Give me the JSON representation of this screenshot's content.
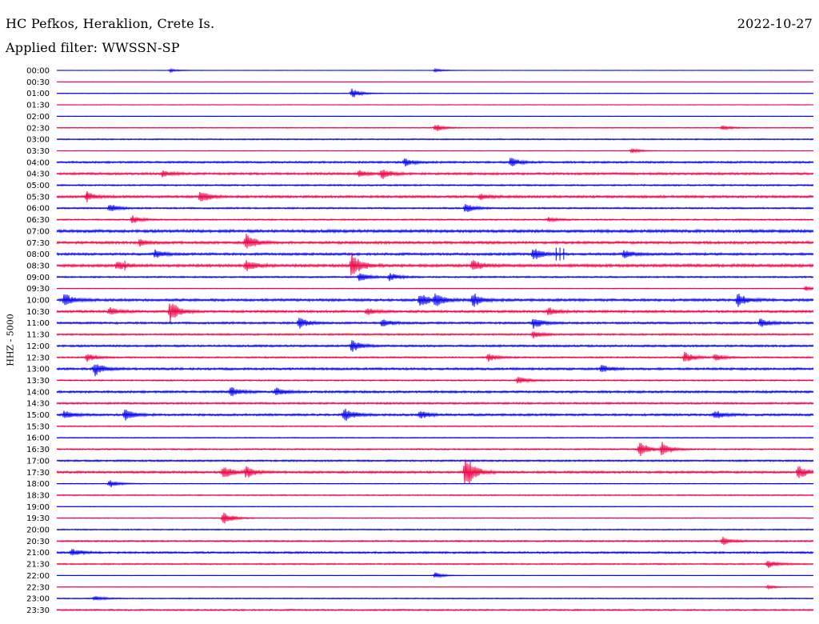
{
  "header": {
    "station": "HC Pefkos, Heraklion, Crete Is.",
    "date": "2022-10-27",
    "filter": "Applied filter: WWSSN-SP",
    "channel": "HHZ - 5000"
  },
  "colors": {
    "odd": "#0000ee",
    "even": "#ee0044"
  },
  "chart_data": {
    "type": "line",
    "title": "HC Pefkos, Heraklion, Crete Is.",
    "subtitle": "Applied filter: WWSSN-SP",
    "ylabel": "HHZ - 5000",
    "tick_labels": [
      "00:00",
      "00:30",
      "01:00",
      "01:30",
      "02:00",
      "02:30",
      "03:00",
      "03:30",
      "04:00",
      "04:30",
      "05:00",
      "05:30",
      "06:00",
      "06:30",
      "07:00",
      "07:30",
      "08:00",
      "08:30",
      "09:00",
      "09:30",
      "10:00",
      "10:30",
      "11:00",
      "11:30",
      "12:00",
      "12:30",
      "13:00",
      "13:30",
      "14:00",
      "14:30",
      "15:00",
      "15:30",
      "16:00",
      "16:30",
      "17:00",
      "17:30",
      "18:00",
      "18:30",
      "19:00",
      "19:30",
      "20:00",
      "20:30",
      "21:00",
      "21:30",
      "22:00",
      "22:30",
      "23:00",
      "23:30"
    ],
    "noise_level": [
      0.3,
      0.2,
      0.4,
      0.4,
      0.3,
      0.5,
      0.8,
      0.4,
      1.2,
      1.4,
      1.0,
      1.5,
      1.0,
      0.9,
      1.8,
      1.6,
      1.5,
      1.8,
      1.0,
      0.5,
      1.6,
      1.5,
      1.3,
      1.1,
      1.3,
      1.0,
      1.4,
      0.9,
      1.4,
      1.2,
      1.4,
      0.7,
      0.6,
      0.9,
      1.1,
      1.4,
      0.5,
      0.8,
      0.4,
      0.5,
      0.8,
      1.0,
      1.2,
      0.9,
      0.3,
      0.2,
      0.7,
      1.0
    ],
    "events": [
      {
        "row": 0,
        "t": 0.15,
        "amp": 2
      },
      {
        "row": 0,
        "t": 0.5,
        "amp": 2
      },
      {
        "row": 2,
        "t": 0.39,
        "amp": 6
      },
      {
        "row": 5,
        "t": 0.5,
        "amp": 5
      },
      {
        "row": 5,
        "t": 0.88,
        "amp": 3
      },
      {
        "row": 7,
        "t": 0.76,
        "amp": 3
      },
      {
        "row": 8,
        "t": 0.46,
        "amp": 5
      },
      {
        "row": 8,
        "t": 0.6,
        "amp": 6
      },
      {
        "row": 9,
        "t": 0.14,
        "amp": 4
      },
      {
        "row": 9,
        "t": 0.4,
        "amp": 4
      },
      {
        "row": 9,
        "t": 0.43,
        "amp": 6
      },
      {
        "row": 11,
        "t": 0.04,
        "amp": 5
      },
      {
        "row": 11,
        "t": 0.19,
        "amp": 8
      },
      {
        "row": 11,
        "t": 0.56,
        "amp": 4
      },
      {
        "row": 12,
        "t": 0.07,
        "amp": 5
      },
      {
        "row": 12,
        "t": 0.54,
        "amp": 6
      },
      {
        "row": 13,
        "t": 0.1,
        "amp": 5
      },
      {
        "row": 13,
        "t": 0.65,
        "amp": 3
      },
      {
        "row": 15,
        "t": 0.11,
        "amp": 4
      },
      {
        "row": 15,
        "t": 0.25,
        "amp": 11
      },
      {
        "row": 16,
        "t": 0.13,
        "amp": 5
      },
      {
        "row": 16,
        "t": 0.63,
        "amp": 8
      },
      {
        "row": 16,
        "t": 0.75,
        "amp": 5
      },
      {
        "row": 17,
        "t": 0.08,
        "amp": 5
      },
      {
        "row": 17,
        "t": 0.25,
        "amp": 7
      },
      {
        "row": 17,
        "t": 0.39,
        "amp": 16
      },
      {
        "row": 17,
        "t": 0.55,
        "amp": 7
      },
      {
        "row": 18,
        "t": 0.4,
        "amp": 6
      },
      {
        "row": 18,
        "t": 0.44,
        "amp": 5
      },
      {
        "row": 19,
        "t": 0.99,
        "amp": 3
      },
      {
        "row": 20,
        "t": 0.01,
        "amp": 8
      },
      {
        "row": 20,
        "t": 0.48,
        "amp": 9
      },
      {
        "row": 20,
        "t": 0.5,
        "amp": 8
      },
      {
        "row": 20,
        "t": 0.55,
        "amp": 9
      },
      {
        "row": 20,
        "t": 0.9,
        "amp": 8
      },
      {
        "row": 21,
        "t": 0.07,
        "amp": 5
      },
      {
        "row": 21,
        "t": 0.15,
        "amp": 14
      },
      {
        "row": 21,
        "t": 0.41,
        "amp": 4
      },
      {
        "row": 21,
        "t": 0.65,
        "amp": 5
      },
      {
        "row": 22,
        "t": 0.32,
        "amp": 7
      },
      {
        "row": 22,
        "t": 0.43,
        "amp": 5
      },
      {
        "row": 22,
        "t": 0.63,
        "amp": 7
      },
      {
        "row": 22,
        "t": 0.93,
        "amp": 6
      },
      {
        "row": 23,
        "t": 0.63,
        "amp": 5
      },
      {
        "row": 24,
        "t": 0.39,
        "amp": 8
      },
      {
        "row": 25,
        "t": 0.04,
        "amp": 5
      },
      {
        "row": 25,
        "t": 0.57,
        "amp": 5
      },
      {
        "row": 25,
        "t": 0.83,
        "amp": 7
      },
      {
        "row": 25,
        "t": 0.87,
        "amp": 5
      },
      {
        "row": 26,
        "t": 0.05,
        "amp": 9
      },
      {
        "row": 26,
        "t": 0.72,
        "amp": 5
      },
      {
        "row": 27,
        "t": 0.61,
        "amp": 5
      },
      {
        "row": 28,
        "t": 0.23,
        "amp": 6
      },
      {
        "row": 28,
        "t": 0.29,
        "amp": 5
      },
      {
        "row": 30,
        "t": 0.01,
        "amp": 5
      },
      {
        "row": 30,
        "t": 0.09,
        "amp": 8
      },
      {
        "row": 30,
        "t": 0.38,
        "amp": 9
      },
      {
        "row": 30,
        "t": 0.48,
        "amp": 5
      },
      {
        "row": 30,
        "t": 0.87,
        "amp": 5
      },
      {
        "row": 33,
        "t": 0.77,
        "amp": 10
      },
      {
        "row": 33,
        "t": 0.8,
        "amp": 9
      },
      {
        "row": 35,
        "t": 0.22,
        "amp": 9
      },
      {
        "row": 35,
        "t": 0.25,
        "amp": 8
      },
      {
        "row": 35,
        "t": 0.54,
        "amp": 22
      },
      {
        "row": 35,
        "t": 0.98,
        "amp": 8
      },
      {
        "row": 36,
        "t": 0.07,
        "amp": 5
      },
      {
        "row": 39,
        "t": 0.22,
        "amp": 9
      },
      {
        "row": 41,
        "t": 0.88,
        "amp": 5
      },
      {
        "row": 42,
        "t": 0.02,
        "amp": 5
      },
      {
        "row": 43,
        "t": 0.94,
        "amp": 5
      },
      {
        "row": 44,
        "t": 0.5,
        "amp": 4
      },
      {
        "row": 45,
        "t": 0.94,
        "amp": 3
      },
      {
        "row": 46,
        "t": 0.05,
        "amp": 3
      }
    ],
    "spikes": [
      {
        "row": 16,
        "t": 0.66,
        "amp": 8
      },
      {
        "row": 16,
        "t": 0.665,
        "amp": 8
      },
      {
        "row": 16,
        "t": 0.67,
        "amp": 7
      },
      {
        "row": 17,
        "t": 0.09,
        "amp": 6
      },
      {
        "row": 11,
        "t": 0.04,
        "amp": 7
      }
    ]
  }
}
